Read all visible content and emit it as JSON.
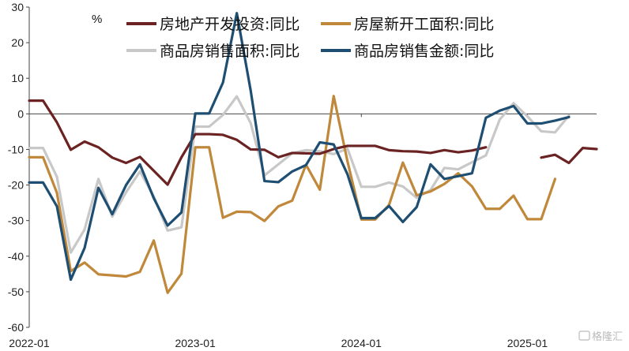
{
  "chart_data": {
    "type": "line",
    "unit": "%",
    "ylim": [
      -60,
      30
    ],
    "yticks": [
      30,
      20,
      10,
      0,
      -10,
      -20,
      -30,
      -40,
      -50,
      -60
    ],
    "x_ticks": [
      {
        "index": 0,
        "label": "2022-01"
      },
      {
        "index": 12,
        "label": "2023-01"
      },
      {
        "index": 24,
        "label": "2024-01"
      },
      {
        "index": 36,
        "label": "2025-01"
      }
    ],
    "x": [
      "2022-01",
      "2022-02",
      "2022-03",
      "2022-04",
      "2022-05",
      "2022-06",
      "2022-07",
      "2022-08",
      "2022-09",
      "2022-10",
      "2022-11",
      "2022-12",
      "2023-01",
      "2023-02",
      "2023-03",
      "2023-04",
      "2023-05",
      "2023-06",
      "2023-07",
      "2023-08",
      "2023-09",
      "2023-10",
      "2023-11",
      "2023-12",
      "2024-01",
      "2024-02",
      "2024-03",
      "2024-04",
      "2024-05",
      "2024-06",
      "2024-07",
      "2024-08",
      "2024-09",
      "2024-10",
      "2024-11",
      "2024-12",
      "2025-01",
      "2025-02",
      "2025-03",
      "2025-04",
      "2025-05",
      "2025-06"
    ],
    "series": [
      {
        "name": "房地产开发投资:同比",
        "color": "#6b2222",
        "values": [
          3.7,
          3.7,
          -2.4,
          -10.1,
          -7.8,
          -9.4,
          -12.3,
          -13.8,
          -12.1,
          -16.0,
          -19.9,
          -12.2,
          -5.7,
          -5.7,
          -5.9,
          -7.3,
          -10.0,
          -10.1,
          -12.2,
          -11.0,
          -11.1,
          -11.2,
          -9.9,
          -9.0,
          -9.0,
          -9.0,
          -10.2,
          -10.5,
          -10.6,
          -11.0,
          -10.2,
          -10.8,
          -10.3,
          -9.4,
          null,
          null,
          null,
          -12.3,
          -11.5,
          -13.8,
          -9.6,
          -9.9
        ]
      },
      {
        "name": "房屋新开工面积:同比",
        "color": "#c0883a",
        "values": [
          -12.2,
          -12.2,
          -22.2,
          -44.2,
          -41.8,
          -45.1,
          -45.4,
          -45.7,
          -44.4,
          -35.6,
          -50.3,
          -44.9,
          -9.4,
          -9.4,
          -29.2,
          -27.5,
          -27.6,
          -30.1,
          -26.0,
          -24.4,
          -14.3,
          -21.3,
          5.0,
          -13.4,
          -29.7,
          -29.7,
          -25.6,
          -13.7,
          -22.9,
          -21.8,
          -19.7,
          -16.7,
          -20.4,
          -26.7,
          -26.7,
          -23.0,
          -29.6,
          -29.6,
          -18.3,
          null,
          null,
          null
        ]
      },
      {
        "name": "商品房销售面积:同比",
        "color": "#c8c8c8",
        "values": [
          -9.6,
          -9.6,
          -17.7,
          -39.0,
          -32.5,
          -18.3,
          -28.9,
          -22.0,
          -16.2,
          -23.2,
          -32.8,
          -31.9,
          -3.6,
          -3.6,
          -0.3,
          4.9,
          -2.6,
          -17.3,
          -14.2,
          -11.1,
          -10.2,
          -10.5,
          -11.3,
          -9.8,
          -20.5,
          -20.5,
          -19.3,
          -20.4,
          -23.6,
          -21.4,
          -15.2,
          -15.6,
          -13.6,
          -11.7,
          -1.6,
          3.0,
          -0.7,
          -4.9,
          -5.2,
          -0.5,
          null,
          null
        ]
      },
      {
        "name": "商品房销售金额:同比",
        "color": "#1e4f72",
        "values": [
          -19.3,
          -19.3,
          -26.0,
          -46.6,
          -37.7,
          -20.8,
          -28.2,
          -20.0,
          -14.2,
          -23.7,
          -31.4,
          -27.7,
          0.1,
          0.1,
          8.8,
          28.3,
          6.6,
          -18.9,
          -19.2,
          -16.2,
          -14.4,
          -8.0,
          -8.6,
          -17.0,
          -29.3,
          -29.3,
          -25.9,
          -30.4,
          -26.2,
          -14.2,
          -18.3,
          -17.5,
          -16.7,
          -1.1,
          0.9,
          2.2,
          -2.7,
          -2.7,
          -1.9,
          -0.9,
          null,
          null
        ]
      }
    ],
    "grid": false,
    "legend_placement": "top"
  },
  "watermark": "格隆汇"
}
